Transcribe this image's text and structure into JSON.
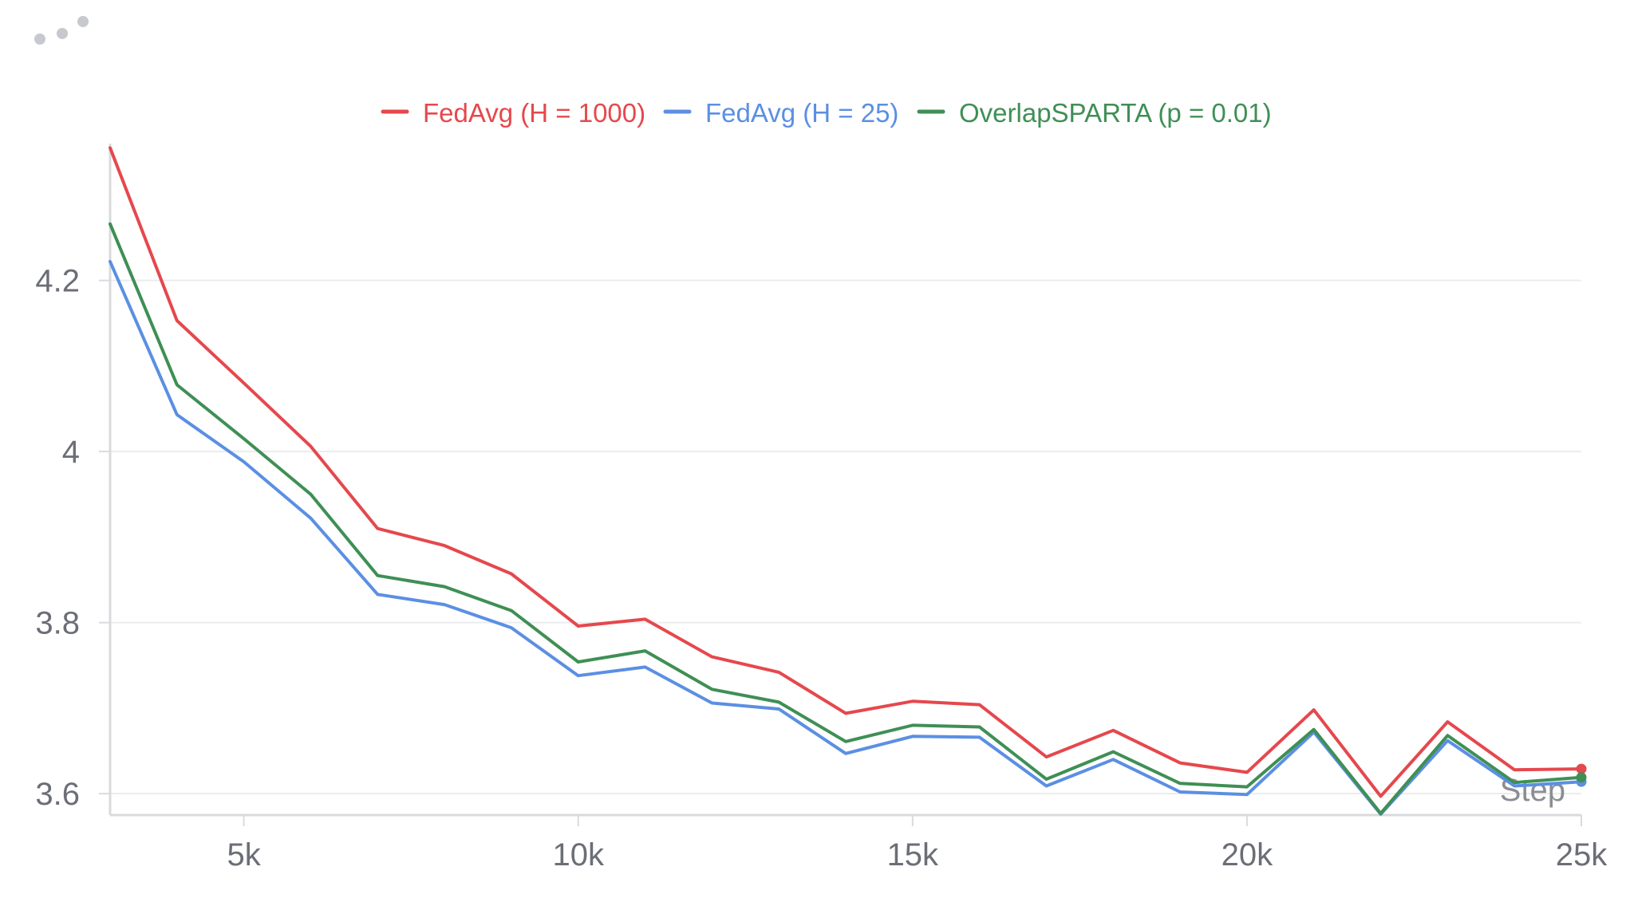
{
  "chart_data": {
    "type": "line",
    "title": "",
    "xlabel": "Step",
    "ylabel": "",
    "xlim": [
      3000,
      25000
    ],
    "ylim": [
      3.575,
      4.36
    ],
    "x_ticks": [
      5000,
      10000,
      15000,
      20000,
      25000
    ],
    "x_tick_labels": [
      "5k",
      "10k",
      "15k",
      "20k",
      "25k"
    ],
    "y_ticks": [
      3.6,
      3.8,
      4.0,
      4.2
    ],
    "y_tick_labels": [
      "3.6",
      "3.8",
      "4",
      "4.2"
    ],
    "grid": true,
    "legend_position": "top-center",
    "x": [
      3000,
      4000,
      5000,
      6000,
      7000,
      8000,
      9000,
      10000,
      11000,
      12000,
      13000,
      14000,
      15000,
      16000,
      17000,
      18000,
      19000,
      20000,
      21000,
      22000,
      23000,
      24000,
      25000
    ],
    "series": [
      {
        "name": "FedAvg (H = 1000)",
        "color": "#e5484d",
        "values": [
          4.355,
          4.153,
          4.08,
          4.006,
          3.91,
          3.89,
          3.857,
          3.796,
          3.804,
          3.76,
          3.742,
          3.694,
          3.708,
          3.704,
          3.643,
          3.674,
          3.636,
          3.625,
          3.698,
          3.597,
          3.684,
          3.628,
          3.629
        ]
      },
      {
        "name": "FedAvg (H = 25)",
        "color": "#5b8fe3",
        "values": [
          4.222,
          4.043,
          3.988,
          3.922,
          3.833,
          3.821,
          3.794,
          3.738,
          3.748,
          3.706,
          3.699,
          3.647,
          3.667,
          3.666,
          3.609,
          3.64,
          3.602,
          3.599,
          3.672,
          3.576,
          3.662,
          3.609,
          3.614
        ]
      },
      {
        "name": "OverlapSPARTA (p = 0.01)",
        "color": "#3f8f55",
        "values": [
          4.266,
          4.078,
          4.015,
          3.95,
          3.855,
          3.842,
          3.814,
          3.754,
          3.767,
          3.722,
          3.707,
          3.661,
          3.68,
          3.678,
          3.617,
          3.649,
          3.612,
          3.608,
          3.675,
          3.577,
          3.668,
          3.613,
          3.619
        ]
      }
    ]
  },
  "ui": {
    "menu_icon": "more-dots-icon"
  }
}
